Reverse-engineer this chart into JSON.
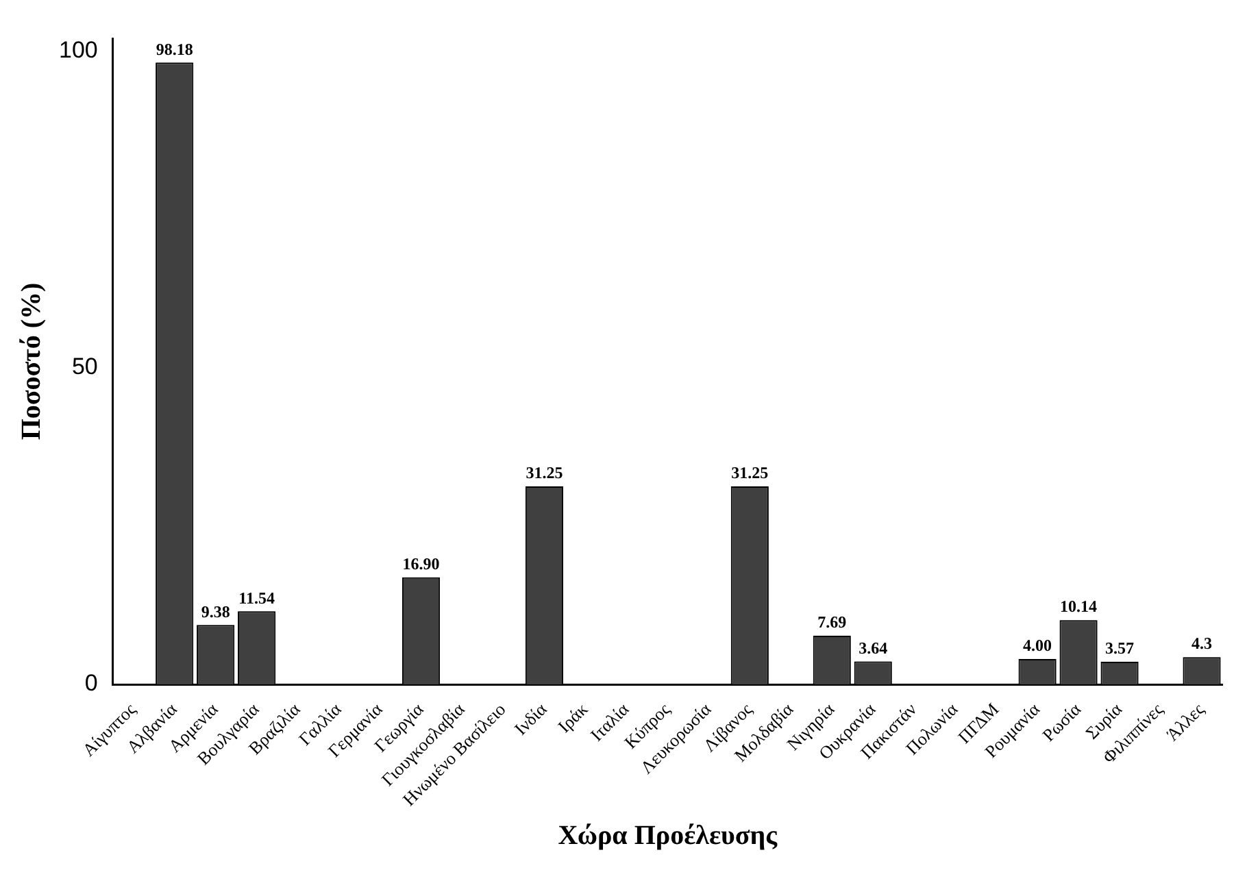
{
  "chart_data": {
    "type": "bar",
    "xlabel": "Χώρα Προέλευσης",
    "ylabel": "Ποσοστό (%)",
    "categories": [
      "Αίγυπτος",
      "Αλβανία",
      "Αρμενία",
      "Βουλγαρία",
      "Βραζιλία",
      "Γαλλία",
      "Γερμανία",
      "Γεωργία",
      "Γιουγκοσλαβία",
      "Ηνωμένο Βασίλειο",
      "Ινδία",
      "Ιράκ",
      "Ιταλία",
      "Κύπρος",
      "Λευκορωσία",
      "Λίβανος",
      "Μολδαβία",
      "Νιγηρία",
      "Ουκρανία",
      "Πακιστάν",
      "Πολωνία",
      "ΠΓΔΜ",
      "Ρουμανία",
      "Ρωσία",
      "Συρία",
      "Φιλιππίνες",
      "Άλλες"
    ],
    "values": [
      0,
      98.18,
      9.38,
      11.54,
      0,
      0,
      0,
      16.9,
      0,
      0,
      31.25,
      0,
      0,
      0,
      0,
      31.25,
      0,
      7.69,
      3.64,
      0,
      0,
      0,
      4.0,
      10.14,
      3.57,
      0,
      4.3
    ],
    "value_labels": [
      null,
      "98.18",
      "9.38",
      "11.54",
      null,
      null,
      null,
      "16.90",
      null,
      null,
      "31.25",
      null,
      null,
      null,
      null,
      "31.25",
      null,
      "7.69",
      "3.64",
      null,
      null,
      null,
      "4.00",
      "10.14",
      "3.57",
      null,
      "4.3"
    ],
    "color": "#404040",
    "ylim": [
      0,
      102
    ],
    "yticks": [
      0,
      50,
      100
    ],
    "grid": false,
    "legend": false
  }
}
